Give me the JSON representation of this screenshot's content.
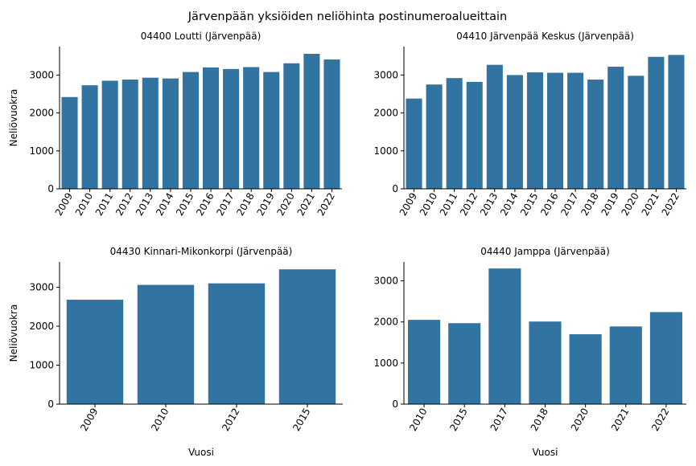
{
  "figure": {
    "suptitle": "Järvenpään yksiöiden neliöhinta postinumeroalueittain",
    "bar_color": "#3274a1"
  },
  "chart_data": [
    {
      "type": "bar",
      "title": "04400  Loutti (Järvenpää)",
      "xlabel": "",
      "ylabel": "Neliövuokra",
      "categories": [
        "2009",
        "2010",
        "2011",
        "2012",
        "2013",
        "2014",
        "2015",
        "2016",
        "2017",
        "2018",
        "2019",
        "2020",
        "2021",
        "2022"
      ],
      "values": [
        2420,
        2730,
        2850,
        2880,
        2930,
        2910,
        3080,
        3200,
        3160,
        3210,
        3080,
        3310,
        3560,
        3410
      ],
      "ylim": [
        0,
        3750
      ],
      "yticks": [
        0,
        1000,
        2000,
        3000
      ]
    },
    {
      "type": "bar",
      "title": "04410  Järvenpää Keskus (Järvenpää)",
      "xlabel": "",
      "ylabel": "",
      "categories": [
        "2009",
        "2010",
        "2011",
        "2012",
        "2013",
        "2014",
        "2015",
        "2016",
        "2017",
        "2018",
        "2019",
        "2020",
        "2021",
        "2022"
      ],
      "values": [
        2380,
        2750,
        2920,
        2820,
        3270,
        3000,
        3070,
        3060,
        3060,
        2880,
        3220,
        2980,
        3480,
        3530
      ],
      "ylim": [
        0,
        3750
      ],
      "yticks": [
        0,
        1000,
        2000,
        3000
      ]
    },
    {
      "type": "bar",
      "title": "04430  Kinnari-Mikonkorpi (Järvenpää)",
      "xlabel": "Vuosi",
      "ylabel": "Neliövuokra",
      "categories": [
        "2009",
        "2010",
        "2012",
        "2015"
      ],
      "values": [
        2680,
        3060,
        3100,
        3460
      ],
      "ylim": [
        0,
        3650
      ],
      "yticks": [
        0,
        1000,
        2000,
        3000
      ]
    },
    {
      "type": "bar",
      "title": "04440  Jamppa (Järvenpää)",
      "xlabel": "Vuosi",
      "ylabel": "",
      "categories": [
        "2010",
        "2015",
        "2017",
        "2018",
        "2020",
        "2021",
        "2022"
      ],
      "values": [
        2050,
        1970,
        3300,
        2010,
        1700,
        1890,
        2240
      ],
      "ylim": [
        0,
        3460
      ],
      "yticks": [
        0,
        1000,
        2000,
        3000
      ]
    }
  ]
}
